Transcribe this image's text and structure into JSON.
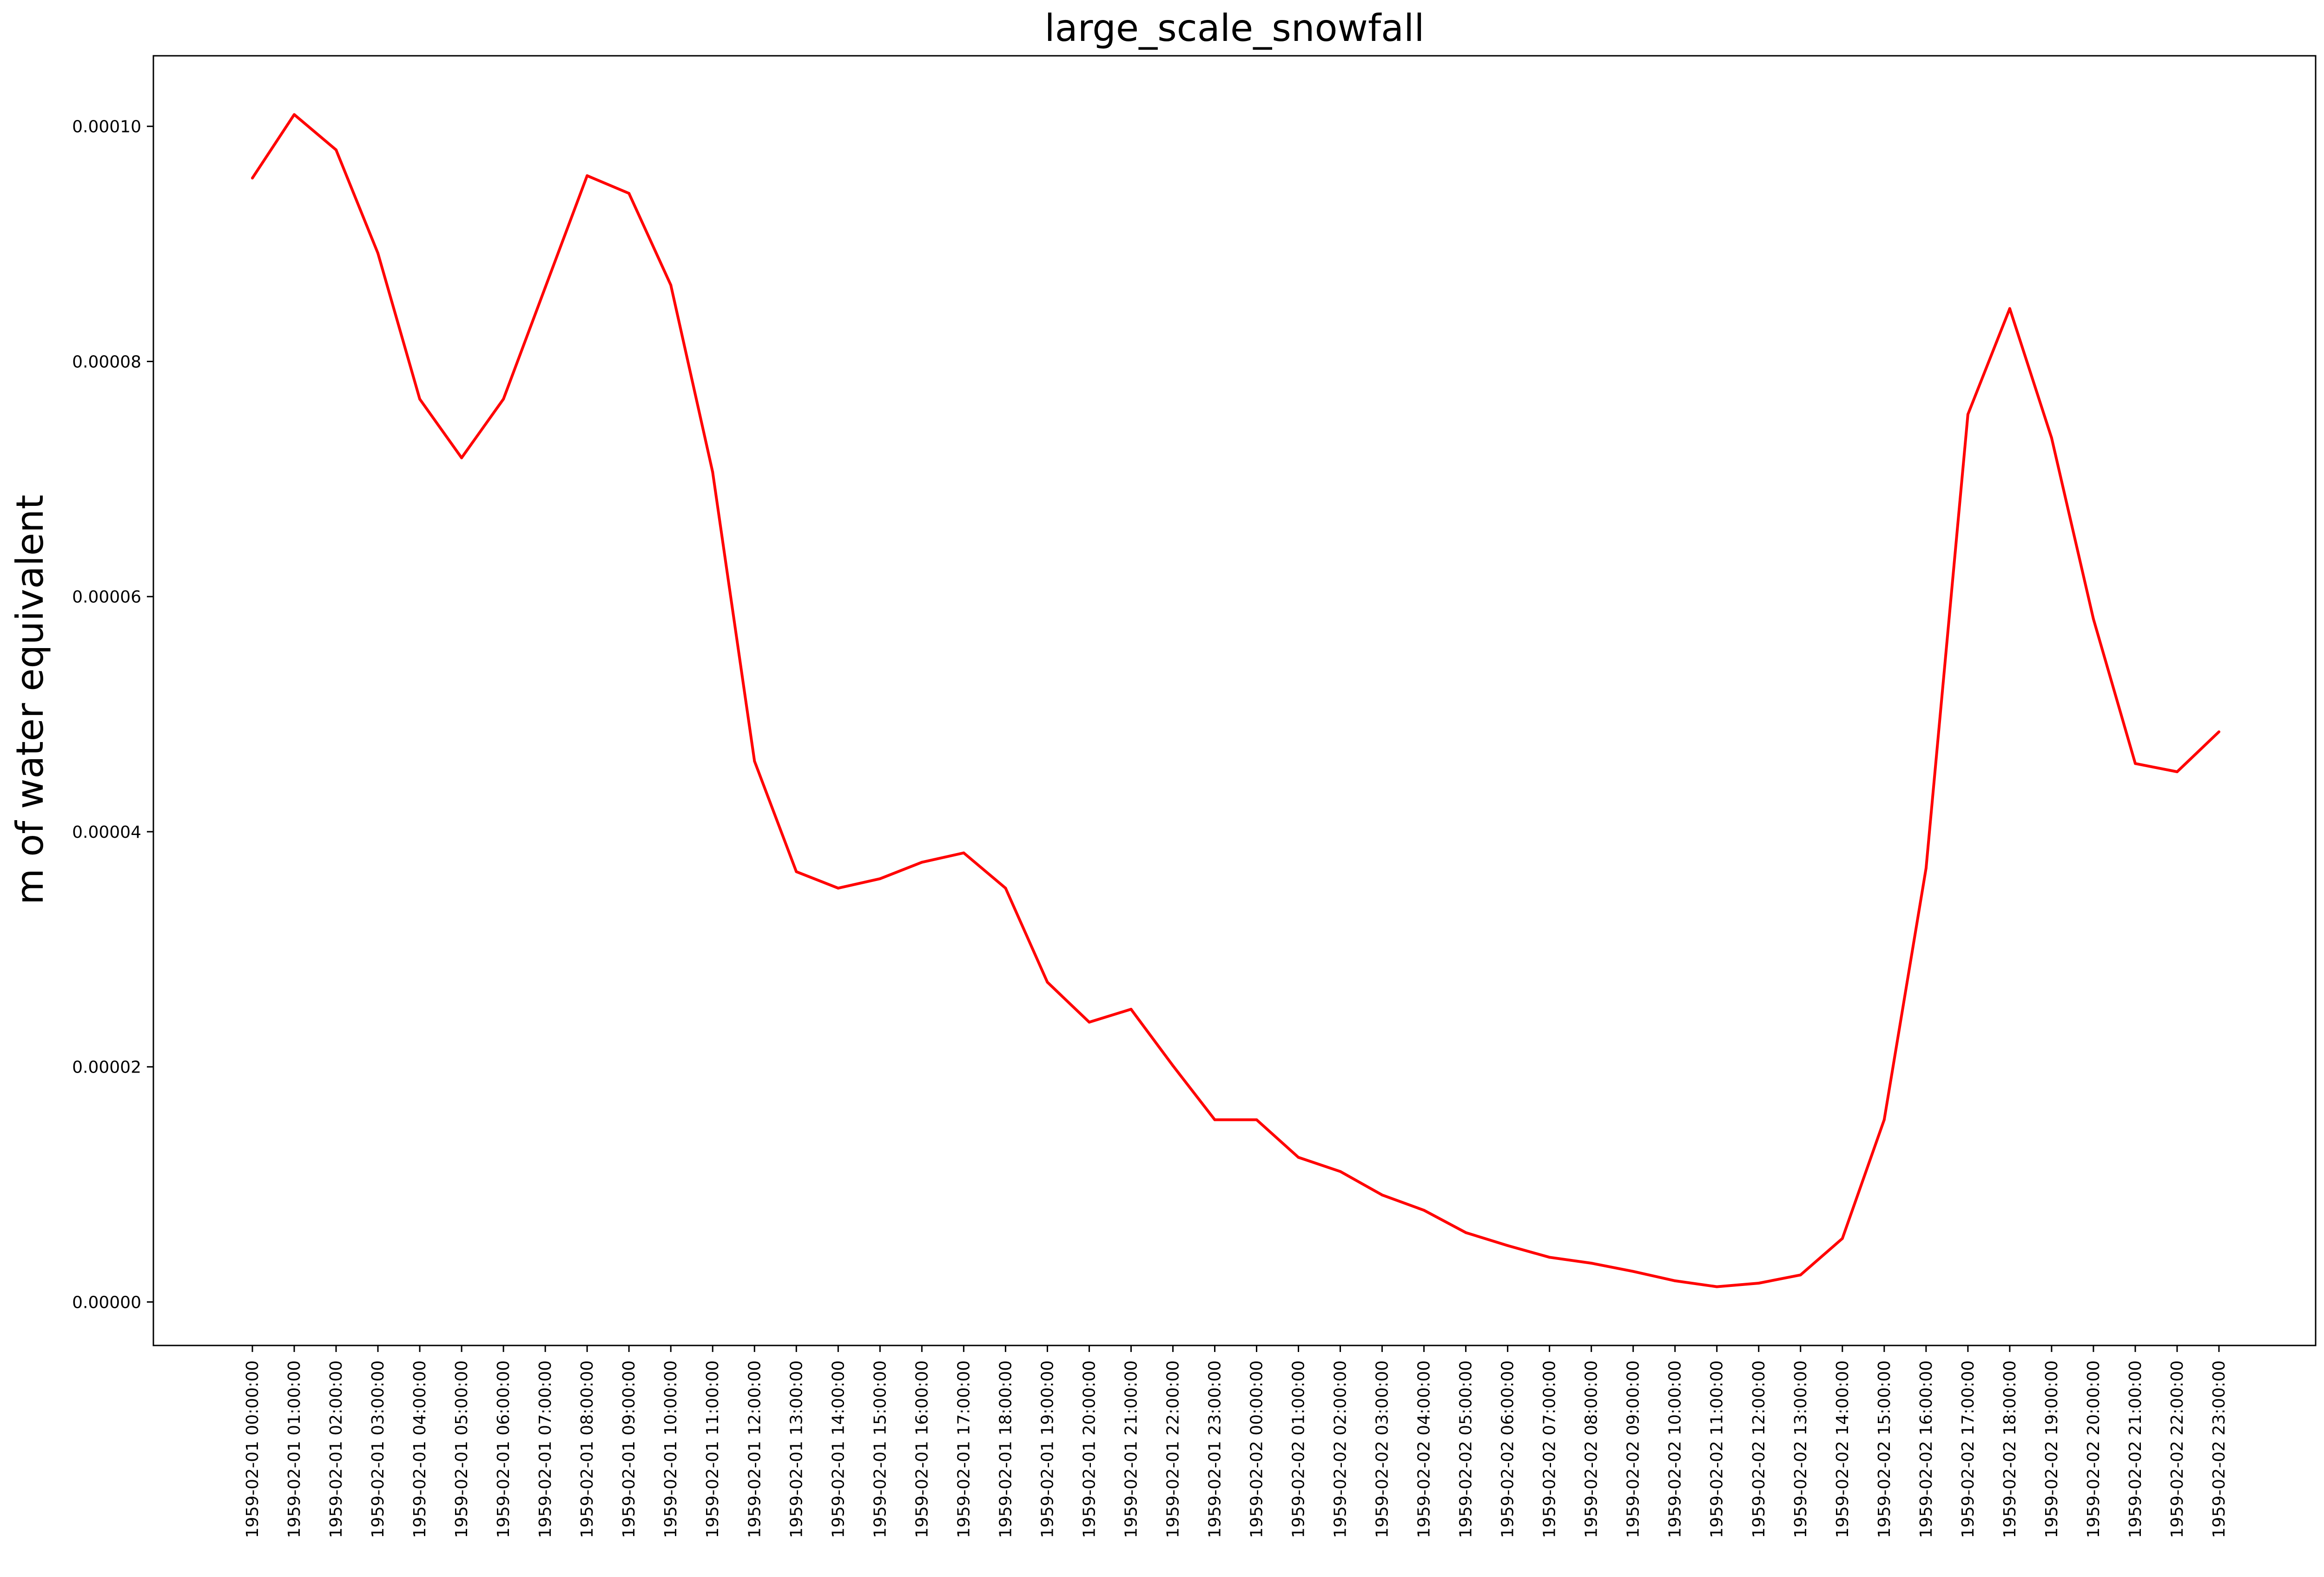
{
  "chart_data": {
    "type": "line",
    "title": "large_scale_snowfall",
    "xlabel": "",
    "ylabel": "m of water equivalent",
    "grid": false,
    "legend": "none",
    "line_color": "#ff0000",
    "ylim": [
      -3.7e-06,
      0.000106
    ],
    "yticks": [
      {
        "value": 0.0,
        "label": "0.00000"
      },
      {
        "value": 2e-05,
        "label": "0.00002"
      },
      {
        "value": 4e-05,
        "label": "0.00004"
      },
      {
        "value": 6e-05,
        "label": "0.00006"
      },
      {
        "value": 8e-05,
        "label": "0.00008"
      },
      {
        "value": 0.0001,
        "label": "0.00010"
      }
    ],
    "x": [
      "1959-02-01 00:00:00",
      "1959-02-01 01:00:00",
      "1959-02-01 02:00:00",
      "1959-02-01 03:00:00",
      "1959-02-01 04:00:00",
      "1959-02-01 05:00:00",
      "1959-02-01 06:00:00",
      "1959-02-01 07:00:00",
      "1959-02-01 08:00:00",
      "1959-02-01 09:00:00",
      "1959-02-01 10:00:00",
      "1959-02-01 11:00:00",
      "1959-02-01 12:00:00",
      "1959-02-01 13:00:00",
      "1959-02-01 14:00:00",
      "1959-02-01 15:00:00",
      "1959-02-01 16:00:00",
      "1959-02-01 17:00:00",
      "1959-02-01 18:00:00",
      "1959-02-01 19:00:00",
      "1959-02-01 20:00:00",
      "1959-02-01 21:00:00",
      "1959-02-01 22:00:00",
      "1959-02-01 23:00:00",
      "1959-02-02 00:00:00",
      "1959-02-02 01:00:00",
      "1959-02-02 02:00:00",
      "1959-02-02 03:00:00",
      "1959-02-02 04:00:00",
      "1959-02-02 05:00:00",
      "1959-02-02 06:00:00",
      "1959-02-02 07:00:00",
      "1959-02-02 08:00:00",
      "1959-02-02 09:00:00",
      "1959-02-02 10:00:00",
      "1959-02-02 11:00:00",
      "1959-02-02 12:00:00",
      "1959-02-02 13:00:00",
      "1959-02-02 14:00:00",
      "1959-02-02 15:00:00",
      "1959-02-02 16:00:00",
      "1959-02-02 17:00:00",
      "1959-02-02 18:00:00",
      "1959-02-02 19:00:00",
      "1959-02-02 20:00:00",
      "1959-02-02 21:00:00",
      "1959-02-02 22:00:00",
      "1959-02-02 23:00:00"
    ],
    "series": [
      {
        "values": [
          9.56e-05,
          0.000101,
          9.8e-05,
          8.92e-05,
          7.68e-05,
          7.18e-05,
          7.68e-05,
          8.63e-05,
          9.58e-05,
          9.43e-05,
          8.65e-05,
          7.06e-05,
          4.6e-05,
          3.66e-05,
          3.52e-05,
          3.6e-05,
          3.74e-05,
          3.82e-05,
          3.52e-05,
          2.72e-05,
          2.38e-05,
          2.49e-05,
          2.01e-05,
          1.55e-05,
          1.55e-05,
          1.23e-05,
          1.11e-05,
          9.1e-06,
          7.8e-06,
          5.9e-06,
          4.8e-06,
          3.8e-06,
          3.3e-06,
          2.6e-06,
          1.8e-06,
          1.3e-06,
          1.6e-06,
          2.3e-06,
          5.4e-06,
          1.55e-05,
          3.69e-05,
          7.55e-05,
          8.45e-05,
          7.35e-05,
          5.81e-05,
          4.58e-05,
          4.51e-05,
          4.85e-05
        ]
      }
    ]
  }
}
